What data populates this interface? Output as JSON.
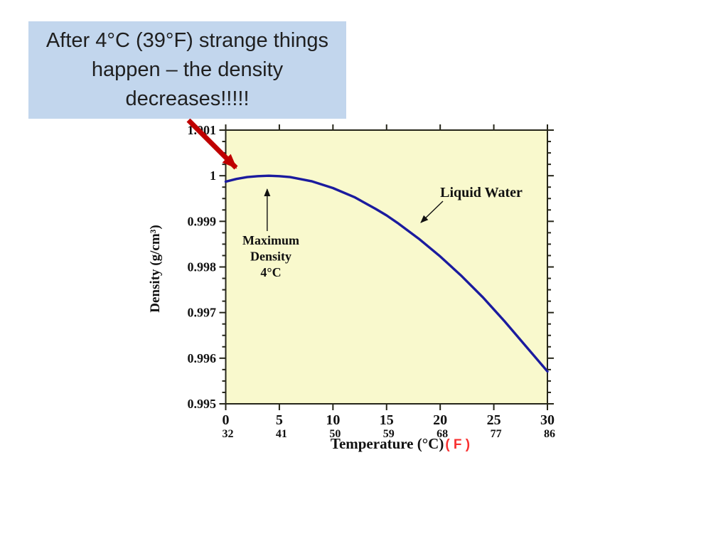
{
  "callout": {
    "lines": [
      "After 4°C (39°F) strange things",
      "happen – the density",
      "decreases!!!!!"
    ],
    "bg_color": "#c2d6ed",
    "text_color": "#1f1f1f"
  },
  "red_arrow": {
    "meaning": "points-from-callout-to-density-maximum",
    "color": "#bf0000"
  },
  "chart_data": {
    "type": "line",
    "title": "",
    "xlabel": "Temperature (°C)",
    "xlabel_secondary": "( F )",
    "ylabel": "Density (g/cm³)",
    "xlim": [
      0,
      30
    ],
    "ylim": [
      0.995,
      1.001
    ],
    "x_ticks": [
      0,
      5,
      10,
      15,
      20,
      25,
      30
    ],
    "x_ticks_fahrenheit": [
      "32",
      "41",
      "50",
      "59",
      "68",
      "77",
      "86"
    ],
    "y_major_step": 0.001,
    "y_minor_step": 0.00025,
    "y_tick_labels": [
      "0.995",
      "0.996",
      "0.997",
      "0.998",
      "0.999",
      "1",
      "1.001"
    ],
    "grid": false,
    "legend_position": "none",
    "series": [
      {
        "name": "Liquid Water",
        "x": [
          0,
          1,
          2,
          3,
          4,
          5,
          6,
          8,
          10,
          12,
          14,
          15,
          16,
          18,
          20,
          22,
          24,
          25,
          26,
          28,
          30
        ],
        "y": [
          0.99987,
          0.99993,
          0.99997,
          0.99999,
          1.0,
          0.99999,
          0.99997,
          0.99988,
          0.99973,
          0.99953,
          0.99927,
          0.99913,
          0.99897,
          0.99862,
          0.99823,
          0.9978,
          0.99733,
          0.99707,
          0.99681,
          0.99626,
          0.99571
        ]
      }
    ],
    "annotations": {
      "max_density": {
        "lines": [
          "Maximum",
          "Density",
          "4°C"
        ],
        "points_to_x": 4,
        "points_to_y": 1.0
      },
      "liquid_water": {
        "label": "Liquid Water"
      }
    },
    "colors": {
      "curve": "#1b1b9e",
      "plot_bg": "#f9f9cd",
      "frame": "#26261a",
      "text": "#111111",
      "fahrenheit_red": "#f83030"
    }
  }
}
